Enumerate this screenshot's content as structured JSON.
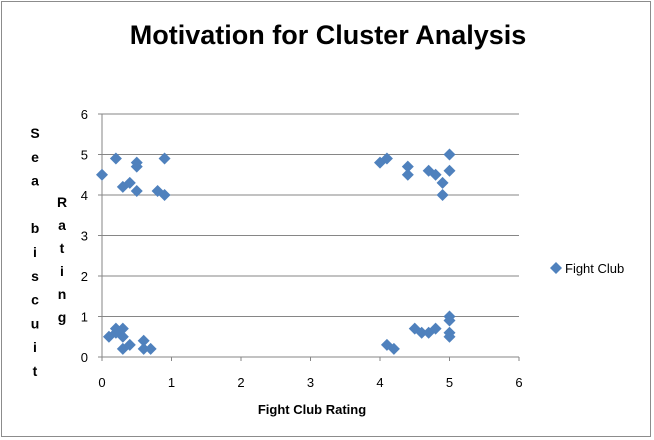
{
  "chart_data": {
    "type": "scatter",
    "title": "Motivation for Cluster Analysis",
    "xlabel": "Fight Club Rating",
    "ylabel_col1": "Sea biscuit",
    "ylabel_col2": "Rating",
    "xlim": [
      0,
      6
    ],
    "ylim": [
      0,
      6
    ],
    "xticks": [
      "0",
      "1",
      "2",
      "3",
      "4",
      "5",
      "6"
    ],
    "yticks": [
      "0",
      "1",
      "2",
      "3",
      "4",
      "5",
      "6"
    ],
    "grid": "horizontal",
    "legend": "right",
    "marker": "diamond",
    "color": "#4f81bd",
    "series": [
      {
        "name": "Fight Club",
        "points": [
          [
            0.0,
            4.5
          ],
          [
            0.2,
            4.9
          ],
          [
            0.3,
            4.2
          ],
          [
            0.4,
            4.3
          ],
          [
            0.5,
            4.1
          ],
          [
            0.5,
            4.7
          ],
          [
            0.5,
            4.8
          ],
          [
            0.8,
            4.1
          ],
          [
            0.9,
            4.0
          ],
          [
            0.9,
            4.9
          ],
          [
            0.1,
            0.5
          ],
          [
            0.2,
            0.6
          ],
          [
            0.2,
            0.7
          ],
          [
            0.3,
            0.5
          ],
          [
            0.3,
            0.7
          ],
          [
            0.3,
            0.2
          ],
          [
            0.4,
            0.3
          ],
          [
            0.6,
            0.4
          ],
          [
            0.6,
            0.2
          ],
          [
            0.7,
            0.2
          ],
          [
            4.0,
            4.8
          ],
          [
            4.1,
            4.9
          ],
          [
            4.4,
            4.7
          ],
          [
            4.4,
            4.5
          ],
          [
            4.7,
            4.6
          ],
          [
            4.8,
            4.5
          ],
          [
            4.9,
            4.3
          ],
          [
            4.9,
            4.0
          ],
          [
            5.0,
            5.0
          ],
          [
            5.0,
            4.6
          ],
          [
            4.1,
            0.3
          ],
          [
            4.2,
            0.2
          ],
          [
            4.5,
            0.7
          ],
          [
            4.6,
            0.6
          ],
          [
            4.7,
            0.6
          ],
          [
            4.8,
            0.7
          ],
          [
            5.0,
            1.0
          ],
          [
            5.0,
            0.9
          ],
          [
            5.0,
            0.6
          ],
          [
            5.0,
            0.5
          ]
        ]
      }
    ]
  }
}
